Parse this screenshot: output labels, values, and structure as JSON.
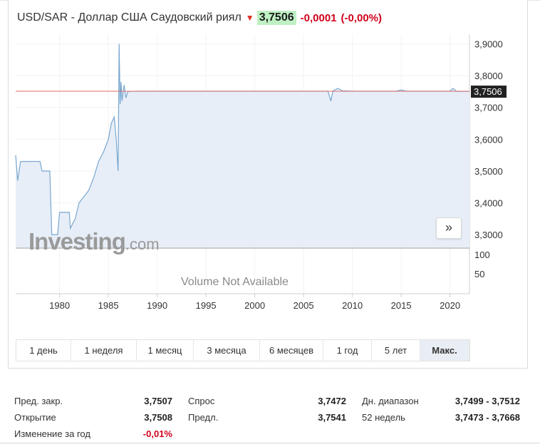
{
  "header": {
    "pair": "USD/SAR - Доллар США Саудовский риял",
    "direction_icon": "down-arrow-icon",
    "price": "3,7506",
    "change": "-0,0001",
    "change_pct": "(-0,00%)"
  },
  "chart_data": {
    "type": "area",
    "x_range": [
      1975.5,
      2022
    ],
    "y_range": [
      3.26,
      3.93
    ],
    "y_ticks": [
      {
        "label": "3,9000",
        "v": 3.9
      },
      {
        "label": "3,8000",
        "v": 3.8
      },
      {
        "label": "3,7000",
        "v": 3.7
      },
      {
        "label": "3,6000",
        "v": 3.6
      },
      {
        "label": "3,5000",
        "v": 3.5
      },
      {
        "label": "3,4000",
        "v": 3.4
      },
      {
        "label": "3,3000",
        "v": 3.3
      }
    ],
    "current_label": "3,7506",
    "current_value": 3.7506,
    "volume_ticks": [
      "100",
      "50"
    ],
    "x_ticks": [
      {
        "label": "1980",
        "v": 1980
      },
      {
        "label": "1985",
        "v": 1985
      },
      {
        "label": "1990",
        "v": 1990
      },
      {
        "label": "1995",
        "v": 1995
      },
      {
        "label": "2000",
        "v": 2000
      },
      {
        "label": "2005",
        "v": 2005
      },
      {
        "label": "2010",
        "v": 2010
      },
      {
        "label": "2015",
        "v": 2015
      },
      {
        "label": "2020",
        "v": 2020
      }
    ],
    "x": [
      1975.5,
      1975.7,
      1976.0,
      1977.0,
      1978.0,
      1978.2,
      1979.0,
      1979.2,
      1979.8,
      1980.0,
      1981.0,
      1981.1,
      1981.6,
      1982.0,
      1982.5,
      1983.0,
      1983.5,
      1984.0,
      1984.5,
      1985.0,
      1985.3,
      1985.6,
      1985.8,
      1986.0,
      1986.1,
      1986.2,
      1986.3,
      1986.4,
      1986.6,
      1986.8,
      1987.0,
      1988.0,
      1990.0,
      1995.0,
      2000.0,
      2005.0,
      2007.5,
      2007.8,
      2008.0,
      2008.5,
      2009.0,
      2010.0,
      2014.5,
      2015.0,
      2015.5,
      2020.0,
      2020.3,
      2020.7,
      2022.0
    ],
    "values": [
      3.55,
      3.47,
      3.53,
      3.53,
      3.53,
      3.5,
      3.5,
      3.3,
      3.3,
      3.37,
      3.37,
      3.32,
      3.35,
      3.4,
      3.42,
      3.44,
      3.48,
      3.53,
      3.56,
      3.6,
      3.65,
      3.67,
      3.6,
      3.5,
      3.9,
      3.71,
      3.78,
      3.72,
      3.77,
      3.73,
      3.75,
      3.751,
      3.751,
      3.751,
      3.751,
      3.751,
      3.751,
      3.72,
      3.751,
      3.76,
      3.752,
      3.751,
      3.751,
      3.755,
      3.751,
      3.751,
      3.76,
      3.75,
      3.7506
    ],
    "volume_text": "Volume Not Available",
    "brand_main": "Investing",
    "brand_suffix": ".com"
  },
  "expand_icon": "double-chevron-right-icon",
  "expand_glyph": "»",
  "periods": [
    {
      "label": "1 день"
    },
    {
      "label": "1 неделя"
    },
    {
      "label": "1 месяц"
    },
    {
      "label": "3 месяца"
    },
    {
      "label": "6 месяцев"
    },
    {
      "label": "1 год"
    },
    {
      "label": "5 лет"
    },
    {
      "label": "Макс."
    }
  ],
  "active_period": "Макс.",
  "stats": {
    "col1": [
      {
        "label": "Пред. закр.",
        "value": "3,7507"
      },
      {
        "label": "Открытие",
        "value": "3,7508"
      },
      {
        "label": "Изменение за год",
        "value": "-0,01%"
      }
    ],
    "col2": [
      {
        "label": "Спрос",
        "value": "3,7472"
      },
      {
        "label": "Предл.",
        "value": "3,7541"
      }
    ],
    "col3": [
      {
        "label": "Дн. диапазон",
        "value": "3,7499 - 3,7512"
      },
      {
        "label": "52 недель",
        "value": "3,7473 - 3,7668"
      }
    ]
  },
  "colors": {
    "line": "#7aa7d0",
    "fill": "#e7eef7",
    "current_line": "#e06b6b",
    "price_bg": "#bff0c4",
    "negative": "#d0021b"
  }
}
